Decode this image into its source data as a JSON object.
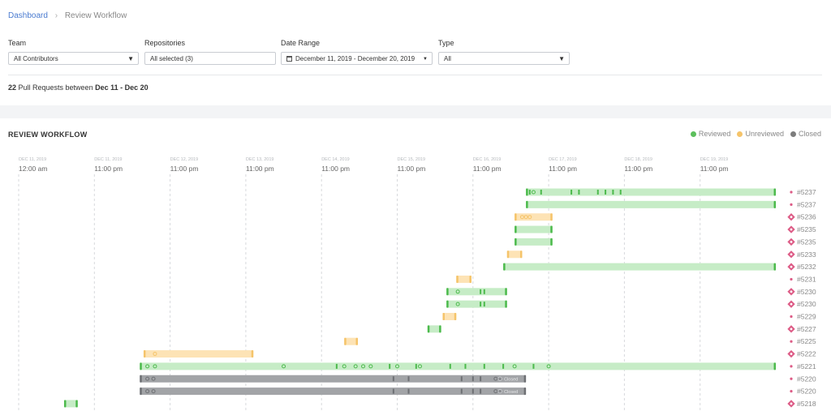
{
  "breadcrumb": {
    "home": "Dashboard",
    "current": "Review Workflow"
  },
  "filters": {
    "team": {
      "label": "Team",
      "value": "All Contributors"
    },
    "repositories": {
      "label": "Repositories",
      "value": "All selected (3)"
    },
    "date_range": {
      "label": "Date Range",
      "value": "December 11, 2019 - December 20, 2019"
    },
    "type": {
      "label": "Type",
      "value": "All"
    }
  },
  "summary": {
    "count": "22",
    "text": " Pull Requests between ",
    "range": "Dec 11 - Dec 20"
  },
  "section_title": "REVIEW WORKFLOW",
  "legend": [
    {
      "label": "Reviewed",
      "color": "#5cbf5c"
    },
    {
      "label": "Unreviewed",
      "color": "#f5c46a"
    },
    {
      "label": "Closed",
      "color": "#7d7d7d"
    }
  ],
  "colors": {
    "reviewed_fill": "#c6ecc6",
    "reviewed_accent": "#4cba4c",
    "unreviewed_fill": "#fde3b5",
    "unreviewed_accent": "#f5c46a",
    "closed_fill": "#a2a4a7",
    "closed_accent": "#6e7074",
    "merged_icon": "#dd5b86",
    "open_dot": "#dd5b86"
  },
  "chart_data": {
    "type": "table",
    "x_unit": "days since Dec 11, 2019 00:00",
    "time_axis": [
      {
        "date": "DEC 11, 2019",
        "time": "12:00 am",
        "x": 0
      },
      {
        "date": "DEC 11, 2019",
        "time": "11:00 pm",
        "x": 1
      },
      {
        "date": "DEC 12, 2019",
        "time": "11:00 pm",
        "x": 2
      },
      {
        "date": "DEC 13, 2019",
        "time": "11:00 pm",
        "x": 3
      },
      {
        "date": "DEC 14, 2019",
        "time": "11:00 pm",
        "x": 4
      },
      {
        "date": "DEC 15, 2019",
        "time": "11:00 pm",
        "x": 5
      },
      {
        "date": "DEC 16, 2019",
        "time": "11:00 pm",
        "x": 6
      },
      {
        "date": "DEC 17, 2019",
        "time": "11:00 pm",
        "x": 7
      },
      {
        "date": "DEC 18, 2019",
        "time": "11:00 pm",
        "x": 8
      },
      {
        "date": "DEC 19, 2019",
        "time": "11:00 pm",
        "x": 9
      }
    ],
    "pull_requests": [
      {
        "id": "#5237",
        "status": "reviewed",
        "start": 6.7,
        "end": 10.0,
        "end_icon": "dot",
        "dots": [
          6.8
        ],
        "ticks": [
          6.75,
          6.9,
          7.3,
          7.4,
          7.65,
          7.75,
          7.85,
          7.95
        ]
      },
      {
        "id": "#5237",
        "status": "reviewed",
        "start": 6.7,
        "end": 10.0,
        "end_icon": "dot",
        "dots": [],
        "ticks": []
      },
      {
        "id": "#5236",
        "status": "unreviewed",
        "start": 6.55,
        "end": 7.05,
        "end_icon": "merged",
        "dots": [
          6.65,
          6.7,
          6.75
        ],
        "ticks": []
      },
      {
        "id": "#5235",
        "status": "reviewed",
        "start": 6.55,
        "end": 7.05,
        "end_icon": "merged",
        "dots": [],
        "ticks": []
      },
      {
        "id": "#5235",
        "status": "reviewed",
        "start": 6.55,
        "end": 7.05,
        "end_icon": "merged",
        "dots": [],
        "ticks": []
      },
      {
        "id": "#5233",
        "status": "unreviewed",
        "start": 6.45,
        "end": 6.65,
        "end_icon": "merged",
        "dots": [],
        "ticks": []
      },
      {
        "id": "#5232",
        "status": "reviewed",
        "start": 6.4,
        "end": 10.0,
        "end_icon": "merged",
        "dots": [],
        "ticks": []
      },
      {
        "id": "#5231",
        "status": "unreviewed",
        "start": 5.78,
        "end": 5.98,
        "end_icon": "dot",
        "dots": [],
        "ticks": []
      },
      {
        "id": "#5230",
        "status": "reviewed",
        "start": 5.65,
        "end": 6.45,
        "end_icon": "merged",
        "dots": [
          5.8
        ],
        "ticks": [
          6.1,
          6.15
        ]
      },
      {
        "id": "#5230",
        "status": "reviewed",
        "start": 5.65,
        "end": 6.45,
        "end_icon": "merged",
        "dots": [
          5.8
        ],
        "ticks": [
          6.1,
          6.15
        ]
      },
      {
        "id": "#5229",
        "status": "unreviewed",
        "start": 5.6,
        "end": 5.78,
        "end_icon": "dot",
        "dots": [],
        "ticks": []
      },
      {
        "id": "#5227",
        "status": "reviewed",
        "start": 5.4,
        "end": 5.58,
        "end_icon": "merged",
        "dots": [],
        "ticks": []
      },
      {
        "id": "#5225",
        "status": "unreviewed",
        "start": 4.3,
        "end": 4.48,
        "end_icon": "dot",
        "dots": [],
        "ticks": []
      },
      {
        "id": "#5222",
        "status": "unreviewed",
        "start": 1.65,
        "end": 3.1,
        "end_icon": "merged",
        "dots": [
          1.8
        ],
        "ticks": []
      },
      {
        "id": "#5221",
        "status": "reviewed",
        "start": 1.6,
        "end": 10.0,
        "end_icon": "dot",
        "dots": [
          1.7,
          1.8,
          3.5,
          4.3,
          4.45,
          4.55,
          4.65,
          5.0,
          5.3,
          6.55,
          7.0
        ],
        "ticks": [
          4.2,
          4.9,
          5.25,
          5.7,
          5.9,
          6.15,
          6.4,
          6.8
        ]
      },
      {
        "id": "#5220",
        "status": "closed",
        "start": 1.6,
        "end": 6.7,
        "end_icon": "dot",
        "end_label": "Closed",
        "dots": [
          1.7,
          1.78,
          6.3
        ],
        "ticks": [
          4.95,
          5.15,
          5.85,
          6.0,
          6.1
        ]
      },
      {
        "id": "#5220",
        "status": "closed",
        "start": 1.6,
        "end": 6.7,
        "end_icon": "dot",
        "end_label": "Closed",
        "dots": [
          1.7,
          1.78,
          6.3
        ],
        "ticks": [
          4.95,
          5.15,
          5.85,
          6.0,
          6.1
        ]
      },
      {
        "id": "#5218",
        "status": "reviewed",
        "start": 0.6,
        "end": 0.78,
        "end_icon": "merged",
        "dots": [],
        "ticks": []
      }
    ]
  }
}
